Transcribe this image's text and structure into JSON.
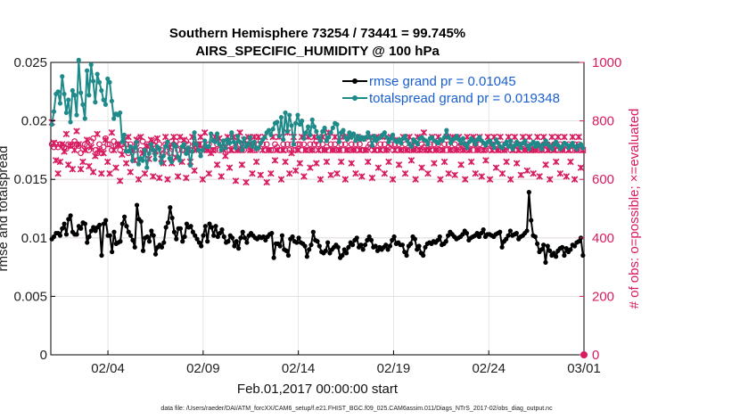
{
  "chart_data": {
    "type": "line",
    "title": "Southern Hemisphere 73254 / 73441 = 99.745%",
    "subtitle": "AIRS_SPECIFIC_HUMIDITY @ 100 hPa",
    "xlabel": "Feb.01,2017 00:00:00 start",
    "ylabel": "rmse and totalspread",
    "ylabel_right": "# of obs: o=possible; ×=evaluated",
    "footer": "data file: /Users/raeder/DAI/ATM_forcXX/CAM6_setup/f.e21.FHIST_BGC.f09_025.CAM6assim.011/Diags_NTrS_2017-02/obs_diag_output.nc",
    "x_tick_labels": [
      "02/04",
      "02/09",
      "02/14",
      "02/19",
      "02/24",
      "03/01"
    ],
    "x_tick_values": [
      4,
      9,
      14,
      19,
      24,
      29
    ],
    "xlim": [
      1,
      29
    ],
    "ylim": [
      0,
      0.025
    ],
    "y_tick_labels": [
      "0",
      "0.005",
      "0.01",
      "0.015",
      "0.02",
      "0.025"
    ],
    "y_tick_values": [
      0,
      0.005,
      0.01,
      0.015,
      0.02,
      0.025
    ],
    "ylim_right": [
      0,
      1000
    ],
    "y_tick_labels_right": [
      "0",
      "200",
      "400",
      "600",
      "800",
      "1000"
    ],
    "y_tick_values_right": [
      0,
      200,
      400,
      600,
      800,
      1000
    ],
    "grid": true,
    "legend_position": "top-right",
    "colors": {
      "rmse": "#000000",
      "totalspread": "#1f8a8a",
      "obs": "#d81b60",
      "legend_text": "#1a5fd0"
    },
    "series": [
      {
        "name": "rmse grand pr = 0.01045",
        "axis": "left",
        "values": [
          0.0099,
          0.0101,
          0.0104,
          0.0104,
          0.0102,
          0.0108,
          0.0112,
          0.0103,
          0.0116,
          0.0119,
          0.0105,
          0.0103,
          0.0103,
          0.011,
          0.0108,
          0.0113,
          0.0112,
          0.0096,
          0.0101,
          0.0106,
          0.0109,
          0.0106,
          0.0109,
          0.0111,
          0.0085,
          0.0112,
          0.0115,
          0.0102,
          0.0102,
          0.0088,
          0.0105,
          0.0095,
          0.0096,
          0.0097,
          0.0112,
          0.0118,
          0.011,
          0.0105,
          0.0102,
          0.0098,
          0.0092,
          0.0128,
          0.0116,
          0.0114,
          0.0089,
          0.01,
          0.0101,
          0.0097,
          0.0106,
          0.0102,
          0.0086,
          0.0092,
          0.0094,
          0.0092,
          0.0096,
          0.0109,
          0.0113,
          0.0126,
          0.0117,
          0.0105,
          0.0099,
          0.0108,
          0.0108,
          0.0097,
          0.0101,
          0.0112,
          0.0109,
          0.011,
          0.0105,
          0.0102,
          0.0099,
          0.0096,
          0.0093,
          0.0102,
          0.011,
          0.0097,
          0.0112,
          0.0109,
          0.0102,
          0.011,
          0.0101,
          0.0104,
          0.0107,
          0.0101,
          0.0096,
          0.0097,
          0.0102,
          0.01,
          0.0093,
          0.0097,
          0.0091,
          0.01,
          0.0105,
          0.01,
          0.0096,
          0.0102,
          0.0104,
          0.0102,
          0.01,
          0.0099,
          0.0101,
          0.01,
          0.0101,
          0.0098,
          0.0101,
          0.0103,
          0.0104,
          0.0083,
          0.0095,
          0.0095,
          0.0093,
          0.0102,
          0.009,
          0.0089,
          0.0085,
          0.0099,
          0.0101,
          0.0097,
          0.0096,
          0.01,
          0.0096,
          0.0095,
          0.0093,
          0.0084,
          0.009,
          0.0094,
          0.0105,
          0.0098,
          0.0097,
          0.0093,
          0.0088,
          0.0087,
          0.0089,
          0.0096,
          0.0087,
          0.009,
          0.0092,
          0.0094,
          0.0092,
          0.0083,
          0.0085,
          0.009,
          0.0087,
          0.0092,
          0.0096,
          0.0094,
          0.0098,
          0.01,
          0.0092,
          0.0094,
          0.009,
          0.0094,
          0.0098,
          0.0101,
          0.0098,
          0.0092,
          0.0093,
          0.0089,
          0.0092,
          0.009,
          0.0092,
          0.0094,
          0.009,
          0.0093,
          0.0098,
          0.0101,
          0.0095,
          0.0096,
          0.0094,
          0.0094,
          0.0088,
          0.0085,
          0.0093,
          0.0095,
          0.0101,
          0.0099,
          0.009,
          0.0093,
          0.0087,
          0.0085,
          0.0092,
          0.0095,
          0.0096,
          0.0095,
          0.0097,
          0.0096,
          0.0098,
          0.0101,
          0.0094,
          0.0095,
          0.0097,
          0.0102,
          0.0105,
          0.0103,
          0.0101,
          0.0099,
          0.01,
          0.0101,
          0.0103,
          0.0106,
          0.0104,
          0.0098,
          0.01,
          0.0101,
          0.0102,
          0.0104,
          0.0101,
          0.0104,
          0.0107,
          0.0101,
          0.0103,
          0.0103,
          0.0102,
          0.0101,
          0.0103,
          0.0104,
          0.0105,
          0.0092,
          0.0097,
          0.0099,
          0.0102,
          0.0106,
          0.0102,
          0.0103,
          0.0104,
          0.0099,
          0.0101,
          0.0102,
          0.0104,
          0.0106,
          0.0139,
          0.0115,
          0.0102,
          0.0101,
          0.0095,
          0.0088,
          0.009,
          0.0094,
          0.0079,
          0.0093,
          0.0089,
          0.0085,
          0.0087,
          0.0084,
          0.0089,
          0.0091,
          0.0092,
          0.0085,
          0.0091,
          0.0088,
          0.009,
          0.0094,
          0.0093,
          0.0096,
          0.0097,
          0.01,
          0.0085
        ]
      },
      {
        "name": "totalspread grand pr = 0.019348",
        "axis": "left",
        "values": [
          0.0197,
          0.0208,
          0.0223,
          0.0225,
          0.0215,
          0.0238,
          0.0223,
          0.0207,
          0.0218,
          0.0199,
          0.0226,
          0.0222,
          0.0205,
          0.0252,
          0.0224,
          0.0214,
          0.0202,
          0.0243,
          0.0222,
          0.0248,
          0.0234,
          0.0216,
          0.024,
          0.0233,
          0.0226,
          0.0218,
          0.0214,
          0.0236,
          0.0233,
          0.0217,
          0.0202,
          0.0206,
          0.0205,
          0.0207,
          0.0182,
          0.0188,
          0.0174,
          0.0174,
          0.0178,
          0.0166,
          0.0177,
          0.0182,
          0.0163,
          0.0168,
          0.0166,
          0.0175,
          0.016,
          0.0172,
          0.018,
          0.0175,
          0.0167,
          0.0178,
          0.0176,
          0.0164,
          0.017,
          0.0178,
          0.0182,
          0.0168,
          0.0165,
          0.018,
          0.0178,
          0.0169,
          0.0166,
          0.0178,
          0.018,
          0.0172,
          0.0177,
          0.0162,
          0.0174,
          0.019,
          0.018,
          0.0175,
          0.017,
          0.0175,
          0.0183,
          0.0178,
          0.0178,
          0.0189,
          0.0183,
          0.0182,
          0.0189,
          0.018,
          0.0175,
          0.0183,
          0.0177,
          0.0184,
          0.0181,
          0.019,
          0.0182,
          0.0177,
          0.0187,
          0.0182,
          0.0175,
          0.0185,
          0.0178,
          0.018,
          0.0186,
          0.0178,
          0.0182,
          0.0176,
          0.0177,
          0.0181,
          0.0184,
          0.0186,
          0.019,
          0.0192,
          0.0188,
          0.0193,
          0.0198,
          0.0199,
          0.0187,
          0.0203,
          0.0184,
          0.0207,
          0.0191,
          0.0205,
          0.0196,
          0.018,
          0.0198,
          0.0205,
          0.0197,
          0.02,
          0.0185,
          0.019,
          0.0195,
          0.0188,
          0.0201,
          0.0195,
          0.0191,
          0.0186,
          0.0183,
          0.0191,
          0.0194,
          0.0183,
          0.0186,
          0.019,
          0.0194,
          0.0198,
          0.0197,
          0.0182,
          0.019,
          0.0192,
          0.0186,
          0.0184,
          0.019,
          0.0186,
          0.0189,
          0.0183,
          0.0187,
          0.0184,
          0.0186,
          0.0184,
          0.0186,
          0.019,
          0.0186,
          0.0179,
          0.0187,
          0.0183,
          0.0185,
          0.0186,
          0.0188,
          0.019,
          0.0186,
          0.0182,
          0.0185,
          0.0188,
          0.0183,
          0.0182,
          0.0184,
          0.0181,
          0.0185,
          0.0187,
          0.0183,
          0.018,
          0.0178,
          0.0184,
          0.0182,
          0.018,
          0.0185,
          0.0186,
          0.0184,
          0.0183,
          0.018,
          0.0185,
          0.0186,
          0.0183,
          0.0182,
          0.0181,
          0.0184,
          0.0183,
          0.0186,
          0.0192,
          0.0186,
          0.0181,
          0.0184,
          0.0185,
          0.0187,
          0.0184,
          0.0181,
          0.0185,
          0.018,
          0.0177,
          0.0182,
          0.0185,
          0.0183,
          0.018,
          0.0184,
          0.0186,
          0.0183,
          0.0181,
          0.0179,
          0.0182,
          0.0183,
          0.018,
          0.0177,
          0.0184,
          0.0181,
          0.0178,
          0.0177,
          0.018,
          0.0182,
          0.0178,
          0.0183,
          0.0176,
          0.0179,
          0.0182,
          0.018,
          0.0177,
          0.0181,
          0.0183,
          0.0179,
          0.0176,
          0.018,
          0.0182,
          0.0178,
          0.0181,
          0.0179,
          0.0176,
          0.018,
          0.0183,
          0.018,
          0.0178,
          0.0176,
          0.018,
          0.0182,
          0.0179,
          0.0176,
          0.0178,
          0.0181,
          0.018,
          0.0177,
          0.0179,
          0.0181,
          0.0178,
          0.0176,
          0.0179,
          0.018,
          0.0177
        ]
      },
      {
        "name": "possible",
        "axis": "right",
        "values": [
          720,
          710,
          720,
          710,
          720,
          715,
          710,
          705,
          720,
          715,
          720,
          730,
          720,
          715,
          690,
          705,
          720,
          715,
          700,
          730,
          740,
          700,
          690,
          720,
          690,
          710,
          740,
          720,
          720,
          700,
          730,
          715,
          720,
          700,
          720,
          710,
          720,
          690,
          720,
          700,
          700,
          720,
          740,
          700,
          730,
          700,
          720,
          700,
          710,
          720,
          730,
          700,
          720,
          700,
          690,
          720,
          720,
          690,
          730,
          720,
          730,
          700,
          720,
          700,
          700,
          730,
          720,
          700,
          700,
          720,
          720,
          720,
          700,
          720,
          710,
          700,
          720,
          700,
          700,
          700,
          720,
          700,
          720,
          710,
          720,
          700,
          700,
          720,
          700,
          730,
          700,
          720,
          700,
          700,
          720,
          720,
          700,
          720,
          700,
          700,
          720,
          730,
          720,
          700,
          720,
          700,
          700,
          700,
          720,
          710,
          700,
          700,
          720,
          700,
          720,
          700,
          720,
          700,
          700,
          720,
          720,
          700,
          720,
          700,
          700,
          720,
          700,
          720,
          730,
          720,
          700,
          720,
          700,
          710,
          700,
          720,
          700,
          720,
          700,
          700,
          720,
          700,
          720,
          700,
          700,
          720,
          700,
          720,
          700,
          720,
          700,
          700,
          700,
          710,
          720,
          700,
          720,
          700,
          700,
          720,
          700,
          720,
          700,
          710,
          720,
          700,
          720,
          700,
          720,
          700,
          700,
          720,
          700,
          700,
          720,
          700,
          720,
          700,
          700,
          720,
          710,
          700,
          700,
          720,
          700,
          720,
          700,
          720,
          700,
          700,
          720,
          700,
          720,
          700,
          700,
          720,
          700,
          710,
          720,
          700,
          720,
          700,
          700,
          720,
          700,
          720,
          700,
          720,
          700,
          700,
          700,
          720,
          700,
          720,
          700,
          720,
          700,
          700,
          720,
          700,
          710,
          720,
          700,
          720,
          700,
          700,
          720,
          700,
          720,
          700,
          720,
          700,
          700,
          720,
          700,
          720,
          700,
          700,
          720,
          700,
          720,
          700,
          700,
          720,
          700,
          700,
          720,
          700,
          720,
          700,
          720,
          700,
          700,
          720,
          700,
          720,
          700,
          700
        ]
      },
      {
        "name": "evaluated",
        "axis": "right",
        "values": [
          795,
          725,
          665,
          620,
          660,
          720,
          695,
          755,
          650,
          715,
          635,
          700,
          765,
          720,
          635,
          660,
          700,
          735,
          645,
          710,
          625,
          680,
          755,
          700,
          620,
          690,
          735,
          660,
          620,
          760,
          700,
          640,
          720,
          595,
          685,
          735,
          655,
          745,
          625,
          700,
          665,
          735,
          600,
          745,
          690,
          620,
          715,
          670,
          735,
          610,
          695,
          740,
          605,
          670,
          655,
          745,
          600,
          710,
          655,
          745,
          675,
          610,
          745,
          660,
          735,
          605,
          700,
          660,
          745,
          630,
          700,
          720,
          745,
          600,
          760,
          700,
          620,
          690,
          700,
          745,
          650,
          740,
          610,
          700,
          680,
          745,
          640,
          700,
          745,
          595,
          700,
          760,
          650,
          735,
          590,
          745,
          700,
          620,
          745,
          660,
          745,
          615,
          700,
          745,
          590,
          700,
          620,
          745,
          665,
          700,
          745,
          600,
          700,
          660,
          760,
          620,
          690,
          745,
          630,
          700,
          655,
          745,
          610,
          700,
          745,
          640,
          700,
          745,
          655,
          700,
          600,
          745,
          700,
          660,
          760,
          615,
          700,
          745,
          620,
          700,
          660,
          745,
          600,
          700,
          745,
          655,
          700,
          620,
          745,
          700,
          610,
          740,
          700,
          660,
          745,
          605,
          700,
          745,
          640,
          700,
          745,
          620,
          700,
          660,
          745,
          600,
          700,
          735,
          650,
          700,
          745,
          620,
          700,
          745,
          665,
          700,
          600,
          745,
          700,
          640,
          760,
          700,
          620,
          700,
          745,
          655,
          700,
          745,
          600,
          700,
          660,
          745,
          620,
          700,
          745,
          615,
          700,
          745,
          650,
          700,
          600,
          745,
          700,
          660,
          745,
          620,
          700,
          745,
          610,
          700,
          665,
          745,
          600,
          700,
          745,
          640,
          700,
          745,
          620,
          700,
          660,
          745,
          600,
          700,
          745,
          655,
          700,
          615,
          745,
          700,
          630,
          745,
          700,
          620,
          700,
          745,
          610,
          700,
          745,
          650,
          700,
          600,
          745,
          700,
          660,
          745,
          620,
          700,
          745,
          610,
          700,
          660,
          745,
          600,
          700,
          745,
          640,
          700
        ]
      }
    ]
  }
}
